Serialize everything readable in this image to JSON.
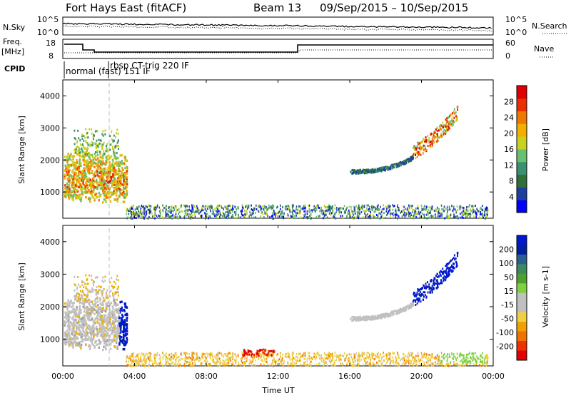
{
  "header": {
    "title": "Fort Hays East (fitACF)",
    "beam": "Beam 13",
    "date_range": "09/Sep/2015 – 10/Sep/2015"
  },
  "sky_panel": {
    "left_label": "N.Sky",
    "left_ticks": [
      "10^5",
      "10^0"
    ],
    "right_label": "N.Search",
    "right_ticks": [
      "10^5",
      "10^0"
    ]
  },
  "freq_panel": {
    "left_label_1": "Freq.",
    "left_label_2": "[MHz]",
    "left_ticks": [
      "18",
      "8"
    ],
    "right_label": "Nave",
    "right_ticks": [
      "60",
      "0"
    ]
  },
  "cpid": {
    "label": "CPID",
    "mode_1": "normal (fast) 151 IF",
    "mode_2": "rbsp CT-trig 220 IF"
  },
  "chart_data": [
    {
      "type": "heatmap",
      "title": "",
      "ylabel": "Slant Range [km]",
      "xlabel": "",
      "xlim": [
        0,
        24
      ],
      "ylim": [
        180,
        4500
      ],
      "y_ticks": [
        "1000",
        "2000",
        "3000",
        "4000"
      ],
      "colorbar": {
        "label": "Power [dB]",
        "ticks": [
          "4",
          "8",
          "12",
          "16",
          "20",
          "24",
          "28"
        ],
        "range": [
          0,
          30
        ]
      }
    },
    {
      "type": "heatmap",
      "title": "",
      "ylabel": "Slant Range [km]",
      "xlabel": "Time UT",
      "xlim": [
        0,
        24
      ],
      "ylim": [
        180,
        4500
      ],
      "x_ticks": [
        "00:00",
        "04:00",
        "08:00",
        "12:00",
        "16:00",
        "20:00",
        "00:00"
      ],
      "y_ticks": [
        "1000",
        "2000",
        "3000",
        "4000"
      ],
      "colorbar": {
        "label": "Velocity [m s-1]",
        "ticks": [
          "200",
          "100",
          "50",
          "15",
          "-15",
          "-50",
          "-100",
          "-200"
        ]
      }
    }
  ]
}
